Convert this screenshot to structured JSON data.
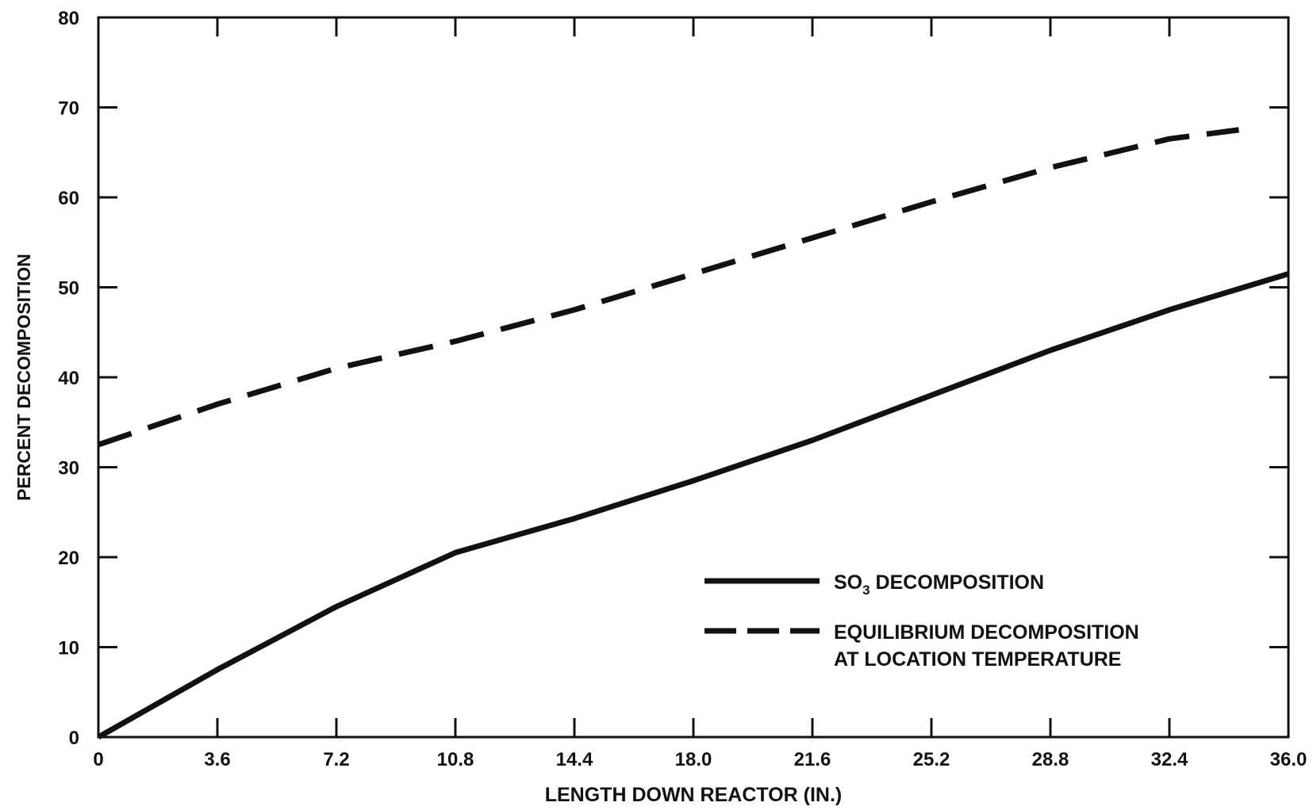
{
  "chart_data": {
    "type": "line",
    "title": "",
    "xlabel": "LENGTH DOWN REACTOR (IN.)",
    "ylabel": "PERCENT DECOMPOSITION",
    "xlim": [
      0,
      36.0
    ],
    "ylim": [
      0,
      80
    ],
    "x_ticks": [
      "0",
      "3.6",
      "7.2",
      "10.8",
      "14.4",
      "18.0",
      "21.6",
      "25.2",
      "28.8",
      "32.4",
      "36.0"
    ],
    "y_ticks": [
      "0",
      "10",
      "20",
      "30",
      "40",
      "50",
      "60",
      "70",
      "80"
    ],
    "grid": false,
    "legend_position": "center-right",
    "series": [
      {
        "name": "SO3 DECOMPOSITION",
        "name_parts": {
          "base": "SO",
          "sub": "3",
          "rest": " DECOMPOSITION"
        },
        "style": "solid",
        "color": "#111111",
        "points": [
          [
            0,
            0
          ],
          [
            3.6,
            7.5
          ],
          [
            7.2,
            14.5
          ],
          [
            10.8,
            20.5
          ],
          [
            14.4,
            24.3
          ],
          [
            18.0,
            28.5
          ],
          [
            21.6,
            33.0
          ],
          [
            25.2,
            38.0
          ],
          [
            28.8,
            43.0
          ],
          [
            32.4,
            47.5
          ],
          [
            36.0,
            51.5
          ]
        ]
      },
      {
        "name": "EQUILIBRIUM DECOMPOSITION AT LOCATION TEMPERATURE",
        "legend_lines": [
          "EQUILIBRIUM DECOMPOSITION",
          "AT LOCATION TEMPERATURE"
        ],
        "style": "dashed",
        "color": "#111111",
        "points": [
          [
            0,
            32.5
          ],
          [
            3.6,
            37.0
          ],
          [
            7.2,
            41.0
          ],
          [
            10.8,
            44.0
          ],
          [
            14.4,
            47.5
          ],
          [
            18.0,
            51.5
          ],
          [
            21.6,
            55.5
          ],
          [
            25.2,
            59.5
          ],
          [
            28.8,
            63.3
          ],
          [
            32.4,
            66.5
          ],
          [
            34.5,
            67.5
          ]
        ]
      }
    ]
  }
}
